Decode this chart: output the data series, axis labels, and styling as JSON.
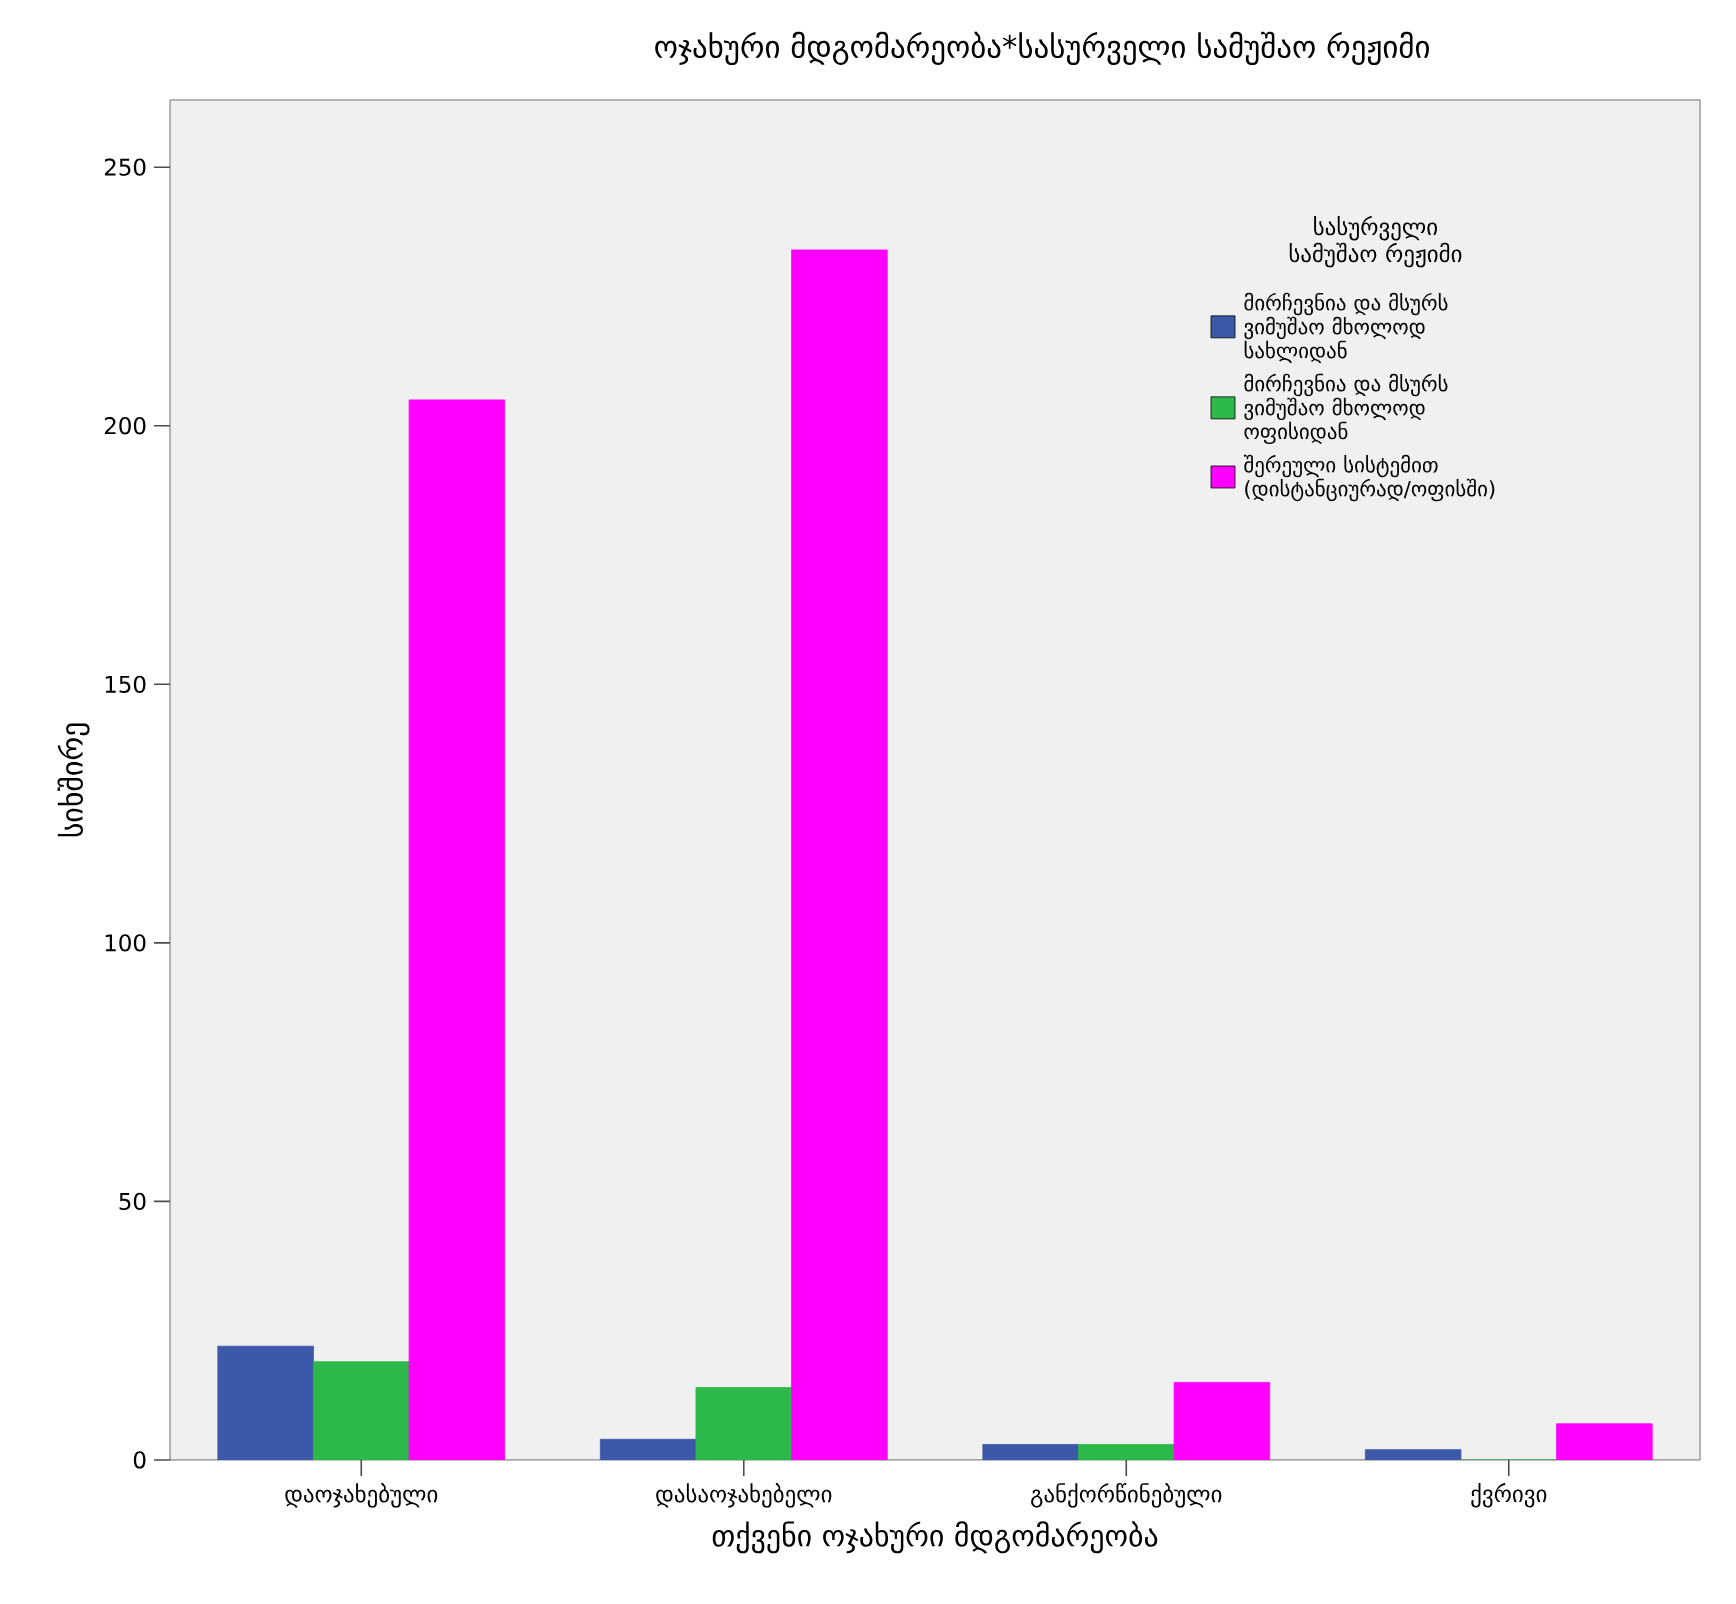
{
  "chart_data": {
    "type": "bar",
    "title": "ოჯახური მდგომარეობა*სასურველი სამუშაო რეჟიმი",
    "xlabel": "თქვენი ოჯახური მდგომარეობა",
    "ylabel": "სიხშირე",
    "legend_title": "სასურველი სამუშაო რეჟიმი",
    "categories": [
      "დაოჯახებული",
      "დასაოჯახებელი",
      "განქორწინებული",
      "ქვრივი"
    ],
    "series": [
      {
        "name": "მირჩევნია და მსურს ვიმუშაო მხოლოდ სახლიდან",
        "color": "#3c58a8",
        "values": [
          22,
          4,
          3,
          2
        ]
      },
      {
        "name": "მირჩევნია და მსურს ვიმუშაო მხოლოდ ოფისიდან",
        "color": "#2db84a",
        "values": [
          19,
          14,
          3,
          0
        ]
      },
      {
        "name": "შერეული სისტემით (დისტანციურად/ოფისში)",
        "color": "#ff00ff",
        "values": [
          205,
          234,
          15,
          7
        ]
      }
    ],
    "ylim": [
      0,
      263
    ],
    "yticks": [
      0,
      50,
      100,
      150,
      200,
      250
    ],
    "grid": false,
    "legend": "top right"
  }
}
